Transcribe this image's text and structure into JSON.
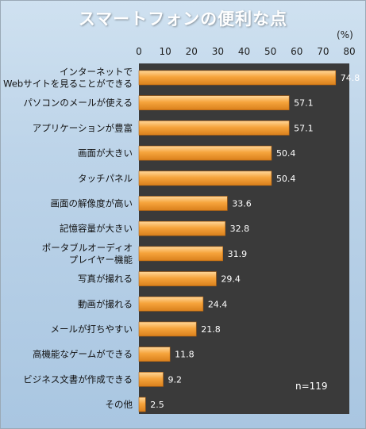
{
  "title": "スマートフォンの便利な点",
  "unit_label": "(%)",
  "note": "n=119",
  "colors": {
    "plot_bg": "#3a3a3a",
    "bar_light": "#ffd79a",
    "bar_mid": "#f6a43c",
    "bar_dark": "#d9801c",
    "value_text": "#ffffff",
    "label_text": "#111111"
  },
  "chart_data": {
    "type": "bar",
    "orientation": "horizontal",
    "title": "スマートフォンの便利な点",
    "xlim": [
      0,
      80
    ],
    "ticks": [
      "0",
      "10",
      "20",
      "30",
      "40",
      "50",
      "60",
      "70",
      "80"
    ],
    "grid": false,
    "categories": [
      [
        "インターネットで",
        "Webサイトを見ることができる"
      ],
      [
        "パソコンのメールが使える"
      ],
      [
        "アプリケーションが豊富"
      ],
      [
        "画面が大きい"
      ],
      [
        "タッチパネル"
      ],
      [
        "画面の解像度が高い"
      ],
      [
        "記憶容量が大きい"
      ],
      [
        "ポータブルオーディオ",
        "プレイヤー機能"
      ],
      [
        "写真が撮れる"
      ],
      [
        "動画が撮れる"
      ],
      [
        "メールが打ちやすい"
      ],
      [
        "高機能なゲームができる"
      ],
      [
        "ビジネス文書が作成できる"
      ],
      [
        "その他"
      ]
    ],
    "values": [
      74.8,
      57.1,
      57.1,
      50.4,
      50.4,
      33.6,
      32.8,
      31.9,
      29.4,
      24.4,
      21.8,
      11.8,
      9.2,
      2.5
    ],
    "value_labels": [
      "74.8",
      "57.1",
      "57.1",
      "50.4",
      "50.4",
      "33.6",
      "32.8",
      "31.9",
      "29.4",
      "24.4",
      "21.8",
      "11.8",
      "9.2",
      "2.5"
    ]
  }
}
